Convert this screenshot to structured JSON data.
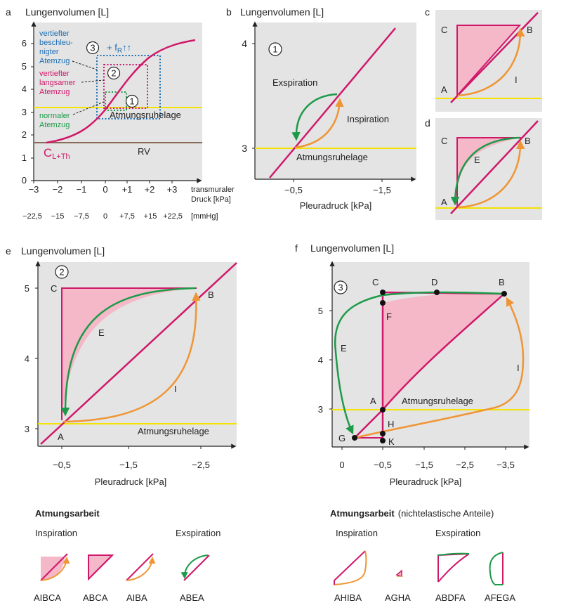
{
  "colors": {
    "panel_bg": "#e4e4e4",
    "magenta": "#d0186a",
    "orange": "#ef9535",
    "green": "#1d9a48",
    "yellow": "#f4e200",
    "blue": "#1d6eb3",
    "brown": "#8a6b58",
    "pink_fill": "#f4b8c8"
  },
  "panel_a": {
    "letter": "a",
    "ylabel": "Lungenvolumen [L]",
    "yticks": [
      "0",
      "1",
      "2",
      "3",
      "4",
      "5",
      "6"
    ],
    "xticks": [
      "−3",
      "−2",
      "−1",
      "0",
      "+1",
      "+2",
      "+3"
    ],
    "xlabel_1": "transmuraler",
    "xlabel_2": "Druck [kPa]",
    "mmhg_ticks": [
      "−22,5",
      "−15",
      "−7,5",
      "0",
      "+7,5",
      "+15",
      "+22,5"
    ],
    "mmhg_unit": "[mmHg]",
    "box3_num": "3",
    "freq_plus": "+ f",
    "freq_sub": "R",
    "freq_arrows": "↑↑",
    "deep_fast": [
      "vertiefter",
      "beschleu-",
      "nigter",
      "Atemzug"
    ],
    "box2_num": "2",
    "deep_slow": [
      "vertiefter",
      "langsamer",
      "Atemzug"
    ],
    "box1_num": "1",
    "normal": [
      "normaler",
      "Atemzug"
    ],
    "rest": "Atmungsruhelage",
    "rv": "RV",
    "compliance_main": "C",
    "compliance_sub": "L+Th"
  },
  "panel_b": {
    "letter": "b",
    "ylabel": "Lungenvolumen [L]",
    "yticks": [
      "4",
      "3"
    ],
    "xticks": [
      "−0,5",
      "−1,5"
    ],
    "xlabel": "Pleuradruck [kPa]",
    "num": "1",
    "exp": "Exspiration",
    "insp": "Inspiration",
    "rest": "Atmungsruhelage"
  },
  "panel_c": {
    "letter": "c",
    "A": "A",
    "B": "B",
    "C": "C",
    "I": "I"
  },
  "panel_d": {
    "letter": "d",
    "A": "A",
    "B": "B",
    "C": "C",
    "E": "E"
  },
  "panel_e": {
    "letter": "e",
    "ylabel": "Lungenvolumen [L]",
    "yticks": [
      "5",
      "4",
      "3"
    ],
    "xticks": [
      "−0,5",
      "−1,5",
      "−2,5"
    ],
    "xlabel": "Pleuradruck [kPa]",
    "num": "2",
    "A": "A",
    "B": "B",
    "C": "C",
    "E": "E",
    "I": "I",
    "rest": "Atmungsruhelage"
  },
  "panel_f": {
    "letter": "f",
    "ylabel": "Lungenvolumen [L]",
    "yticks": [
      "5",
      "4",
      "3"
    ],
    "xticks": [
      "0",
      "−0,5",
      "−1,5",
      "−2,5",
      "−3,5"
    ],
    "xlabel": "Pleuradruck [kPa]",
    "num": "3",
    "A": "A",
    "B": "B",
    "C": "C",
    "D": "D",
    "E": "E",
    "F": "F",
    "G": "G",
    "H": "H",
    "I": "I",
    "K": "K",
    "rest": "Atmungsruhelage"
  },
  "legend_left": {
    "title": "Atmungsarbeit",
    "insp": "Inspiration",
    "exp": "Exspiration",
    "labels": [
      "AIBCA",
      "ABCA",
      "AIBA",
      "ABEA"
    ]
  },
  "legend_right": {
    "title": "Atmungsarbeit",
    "subtitle": "(nichtelastische Anteile)",
    "insp": "Inspiration",
    "exp": "Exspiration",
    "labels": [
      "AHIBA",
      "AGHA",
      "ABDFA",
      "AFEGA"
    ]
  }
}
